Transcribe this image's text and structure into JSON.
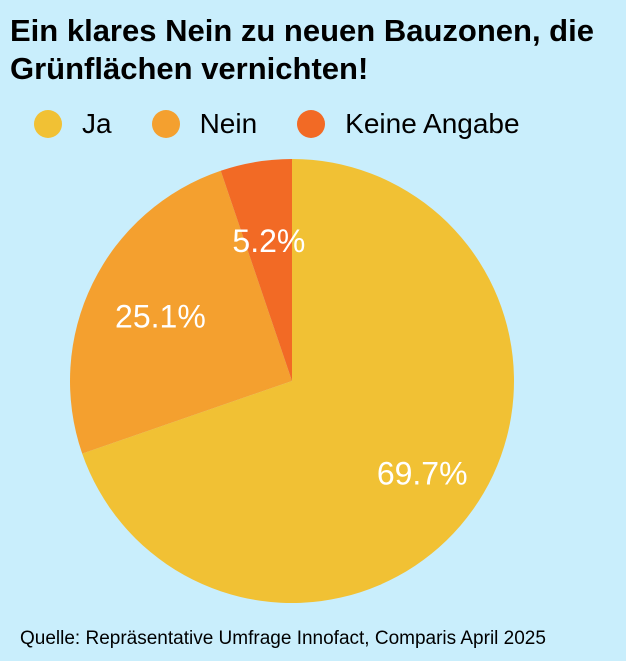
{
  "chart_data": {
    "type": "pie",
    "title": "Ein klares Nein zu neuen Bauzonen, die Grünflächen vernichten!",
    "categories": [
      "Ja",
      "Nein",
      "Keine Angabe"
    ],
    "values": [
      69.7,
      25.1,
      5.2
    ],
    "labels": [
      "69.7%",
      "25.1%",
      "5.2%"
    ],
    "colors": [
      "#f1c134",
      "#f4a02f",
      "#f26a25"
    ],
    "start_angle": "12 o'clock",
    "direction": "clockwise",
    "legend": "top-left",
    "label_color": "#ffffff"
  },
  "source": "Quelle: Repräsentative Umfrage Innofact, Comparis April 2025"
}
